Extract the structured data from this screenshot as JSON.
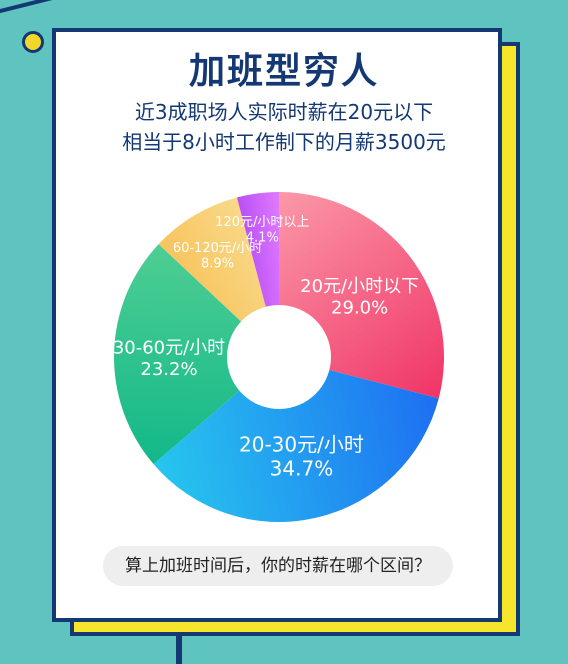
{
  "header": {
    "title": "加班型穷人",
    "subtitle_lines": [
      "近3成职场人实际时薪在20元以下",
      "相当于8小时工作制下的月薪3500元"
    ]
  },
  "question": "算上加班时间后，你的时薪在哪个区间？",
  "colors": {
    "background": "#5fc4c0",
    "frame": "#143873",
    "accent_yellow": "#f6e52a"
  },
  "chart_data": {
    "type": "pie",
    "donut": true,
    "title": "",
    "slices": [
      {
        "label": "20元/小时以下",
        "value": 29.0,
        "display": "29.0%",
        "color_from": "#fb98a8",
        "color_to": "#f03566"
      },
      {
        "label": "20-30元/小时",
        "value": 34.7,
        "display": "34.7%",
        "color_from": "#1e6ff2",
        "color_to": "#27c6ee"
      },
      {
        "label": "30-60元/小时",
        "value": 23.2,
        "display": "23.2%",
        "color_from": "#12b889",
        "color_to": "#4ece93"
      },
      {
        "label": "60-120元/小时",
        "value": 8.9,
        "display": "8.9%",
        "color_from": "#f7c45e",
        "color_to": "#f9d98a"
      },
      {
        "label": "120元/小时以上",
        "value": 4.1,
        "display": "4.1%",
        "color_from": "#b84ff5",
        "color_to": "#e07bff"
      }
    ]
  }
}
